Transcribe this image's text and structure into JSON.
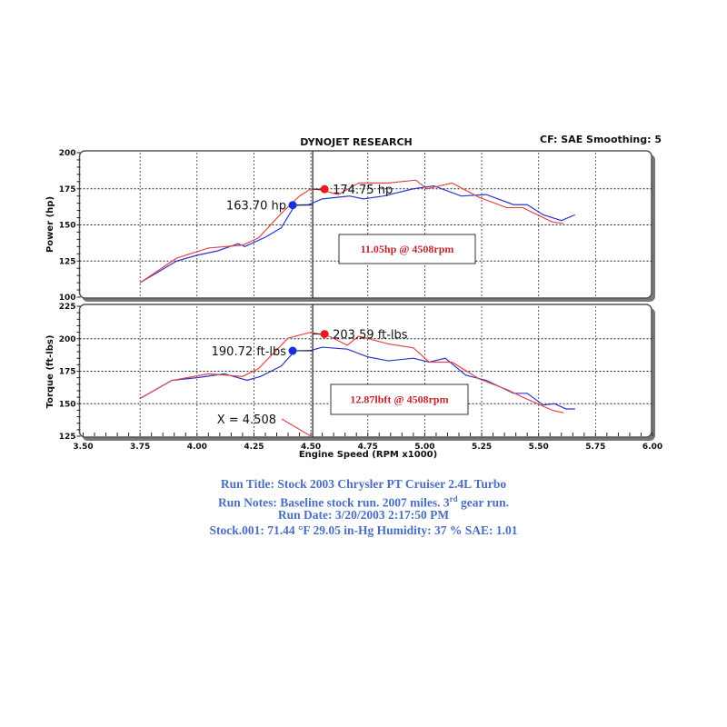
{
  "header": {
    "title": "DYNOJET RESEARCH",
    "settings": "CF: SAE  Smoothing: 5"
  },
  "colors": {
    "run_stock": "#2b35c8",
    "run_modified": "#e0484a",
    "info_text": "#4a6fc0"
  },
  "chart_data": [
    {
      "type": "line",
      "ylabel": "Power (hp)",
      "ylim": [
        100,
        200
      ],
      "yticks": [
        "100",
        "125",
        "150",
        "175",
        "200"
      ],
      "xlim": [
        3.5,
        6.0
      ],
      "grid": true,
      "series": [
        {
          "color": "#2b35c8",
          "x": [
            3.75,
            3.91,
            4.0,
            4.09,
            4.18,
            4.21,
            4.3,
            4.37,
            4.43,
            4.49,
            4.55,
            4.67,
            4.73,
            4.82,
            4.95,
            5.04,
            5.16,
            5.27,
            5.39,
            5.45,
            5.52,
            5.6,
            5.66
          ],
          "y": [
            110,
            125,
            129,
            132,
            137,
            135,
            141.5,
            148,
            163.7,
            164,
            168,
            170,
            168,
            170,
            175,
            177,
            170,
            171,
            164,
            164,
            157,
            153,
            157
          ]
        },
        {
          "color": "#e0484a",
          "x": [
            3.75,
            3.91,
            4.05,
            4.2,
            4.27,
            4.37,
            4.45,
            4.5,
            4.55,
            4.62,
            4.71,
            4.84,
            4.96,
            5.01,
            5.12,
            5.24,
            5.36,
            5.43,
            5.56,
            5.61
          ],
          "y": [
            110,
            127,
            134,
            136,
            141,
            158,
            170,
            175,
            174,
            171,
            179,
            179,
            181,
            175,
            179,
            169,
            162,
            162,
            152,
            151
          ]
        }
      ],
      "markers": [
        {
          "x": 4.42,
          "y": 163.7,
          "label": "163.70 hp",
          "color": "#1a2ee0"
        },
        {
          "x": 4.56,
          "y": 174.75,
          "label": "174.75 hp",
          "color": "#e81c1c"
        }
      ],
      "annotation": "11.05hp @ 4508rpm"
    },
    {
      "type": "line",
      "ylabel": "Torque (ft-lbs)",
      "xlabel": "Engine Speed (RPM x1000)",
      "ylim": [
        125,
        225
      ],
      "yticks": [
        "125",
        "150",
        "175",
        "200",
        "225"
      ],
      "xlim": [
        3.5,
        6.0
      ],
      "xticks": [
        "3.50",
        "3.75",
        "4.00",
        "4.25",
        "4.50",
        "4.75",
        "5.00",
        "5.25",
        "5.50",
        "5.75",
        "6.00"
      ],
      "grid": true,
      "series": [
        {
          "color": "#2b35c8",
          "x": [
            3.75,
            3.89,
            4.0,
            4.12,
            4.22,
            4.28,
            4.37,
            4.43,
            4.5,
            4.55,
            4.66,
            4.75,
            4.84,
            4.95,
            5.02,
            5.09,
            5.18,
            5.27,
            5.39,
            5.45,
            5.52,
            5.57,
            5.62,
            5.66
          ],
          "y": [
            154,
            168,
            170,
            173,
            168,
            171,
            179,
            190.7,
            191,
            193.5,
            192,
            186,
            183,
            185,
            182,
            185,
            172,
            168,
            158,
            158,
            149,
            150,
            146,
            146
          ]
        },
        {
          "color": "#e0484a",
          "x": [
            3.75,
            3.89,
            4.05,
            4.2,
            4.27,
            4.4,
            4.5,
            4.58,
            4.66,
            4.71,
            4.84,
            4.95,
            5.02,
            5.12,
            5.24,
            5.36,
            5.43,
            5.56,
            5.61
          ],
          "y": [
            154,
            168,
            173,
            171,
            177,
            200.5,
            205,
            202,
            195,
            202,
            196,
            193,
            182,
            182,
            169,
            161,
            155,
            145,
            143
          ]
        }
      ],
      "markers": [
        {
          "x": 4.42,
          "y": 190.72,
          "label": "190.72 ft-lbs",
          "color": "#1a2ee0"
        },
        {
          "x": 4.56,
          "y": 203.59,
          "label": "203.59 ft-lbs",
          "color": "#e81c1c"
        }
      ],
      "annotation": "12.87lbft @ 4508rpm",
      "cursor_label": "X = 4.508",
      "cursor_x": 4.508
    }
  ],
  "info": {
    "run_title": "Run Title: Stock 2003 Chrysler PT Cruiser 2.4L Turbo",
    "run_notes_pre": "Run Notes: Baseline stock run. 2007 miles. 3",
    "run_notes_sup": "rd",
    "run_notes_post": " gear run.",
    "run_date": "Run Date: 3/20/2003 2:17:50 PM",
    "conditions": "Stock.001: 71.44 °F 29.05 in-Hg Humidity: 37 % SAE: 1.01"
  }
}
